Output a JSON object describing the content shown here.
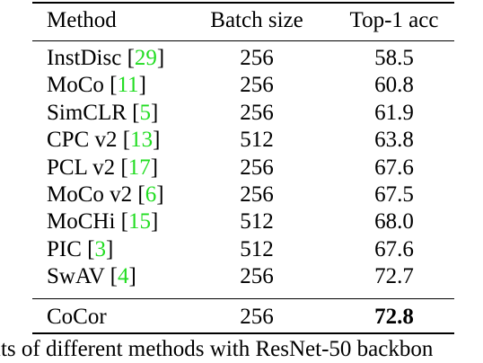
{
  "table": {
    "headers": {
      "method": "Method",
      "batch_size": "Batch size",
      "top1_acc": "Top-1 acc"
    },
    "rows": [
      {
        "method": "InstDisc",
        "ref": "29",
        "batch_size": "256",
        "top1_acc": "58.5"
      },
      {
        "method": "MoCo",
        "ref": "11",
        "batch_size": "256",
        "top1_acc": "60.8"
      },
      {
        "method": "SimCLR",
        "ref": "5",
        "batch_size": "256",
        "top1_acc": "61.9"
      },
      {
        "method": "CPC v2",
        "ref": "13",
        "batch_size": "512",
        "top1_acc": "63.8"
      },
      {
        "method": "PCL v2",
        "ref": "17",
        "batch_size": "256",
        "top1_acc": "67.6"
      },
      {
        "method": "MoCo v2",
        "ref": "6",
        "batch_size": "256",
        "top1_acc": "67.5"
      },
      {
        "method": "MoCHi",
        "ref": "15",
        "batch_size": "512",
        "top1_acc": "68.0"
      },
      {
        "method": "PIC",
        "ref": "3",
        "batch_size": "512",
        "top1_acc": "67.6"
      },
      {
        "method": "SwAV",
        "ref": "4",
        "batch_size": "256",
        "top1_acc": "72.7"
      }
    ],
    "final_row": {
      "method": "CoCor",
      "batch_size": "256",
      "top1_acc": "72.8"
    }
  },
  "caption": "lts of different methods with ResNet-50 backbon",
  "colors": {
    "citation": "#22dd22",
    "text": "#000000"
  }
}
